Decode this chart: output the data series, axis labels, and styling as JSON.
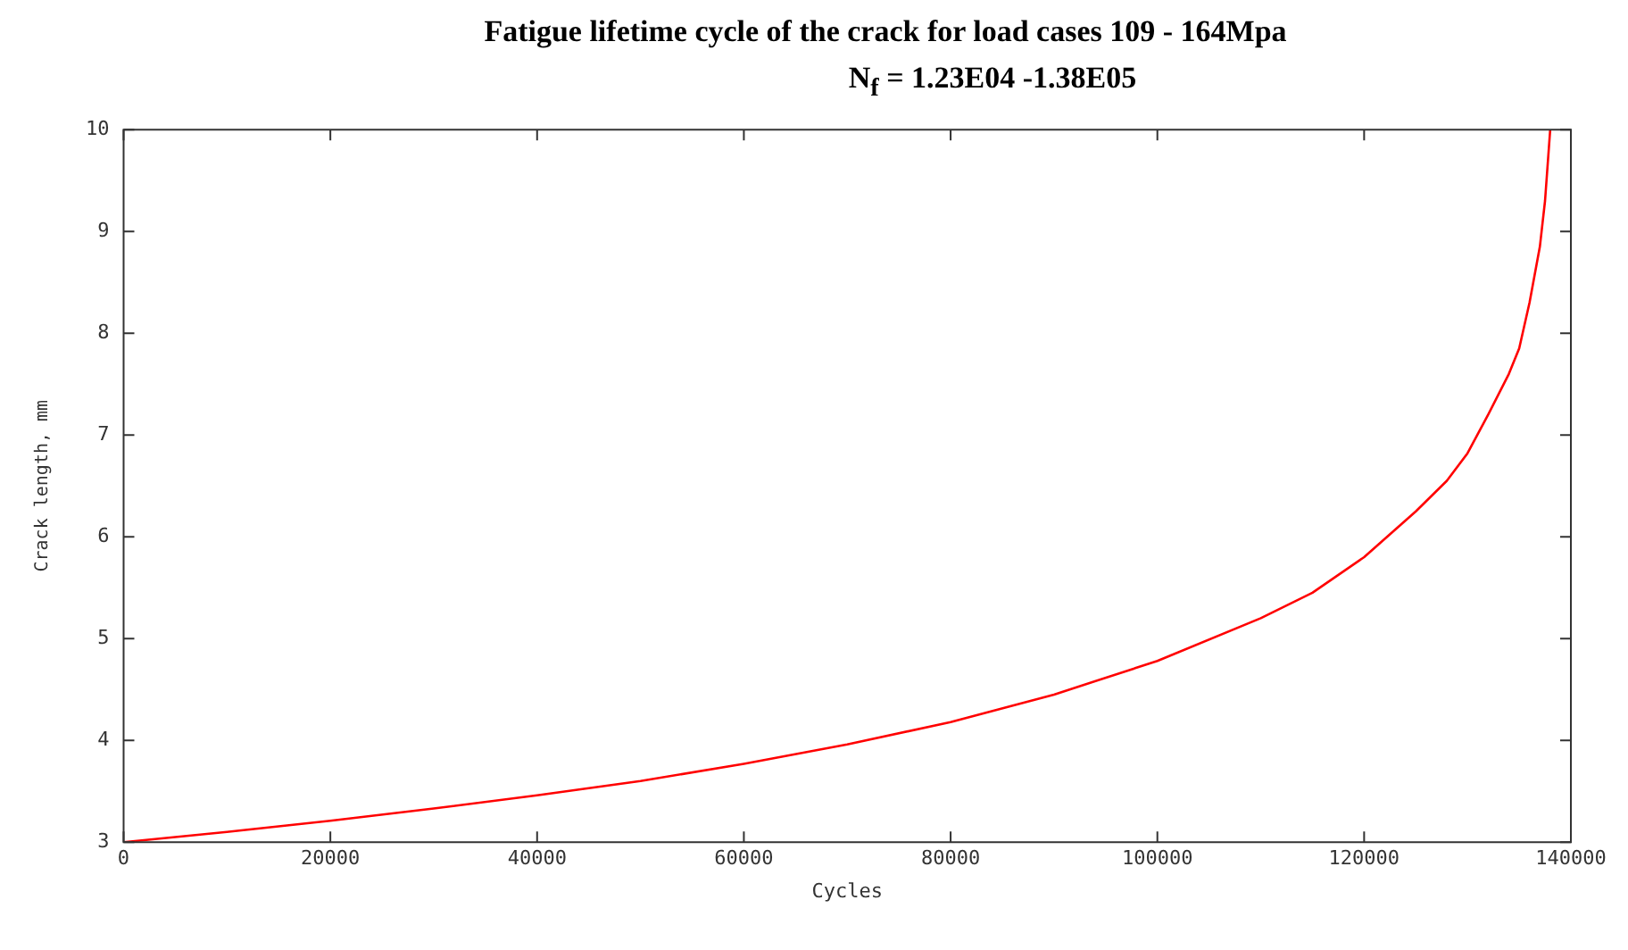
{
  "chart_data": {
    "type": "line",
    "title": "Fatigue lifetime cycle of the crack  for load cases 109 - 164Mpa",
    "subtitle": "N$_{f}$ =  1.23E04 -1.38E05",
    "xlabel": "Cycles",
    "ylabel": "Crack length, mm",
    "x": [
      0,
      10000,
      20000,
      30000,
      40000,
      50000,
      60000,
      70000,
      80000,
      90000,
      100000,
      110000,
      115000,
      120000,
      125000,
      128000,
      130000,
      132000,
      134000,
      135000,
      136000,
      137000,
      137500,
      138000
    ],
    "series": [
      {
        "color": "#ff0000",
        "values": [
          3.0,
          3.1,
          3.21,
          3.33,
          3.46,
          3.6,
          3.77,
          3.96,
          4.18,
          4.45,
          4.78,
          5.2,
          5.45,
          5.8,
          6.25,
          6.55,
          6.82,
          7.2,
          7.6,
          7.85,
          8.3,
          8.85,
          9.3,
          10.0
        ]
      }
    ],
    "xlim": [
      0,
      140000
    ],
    "xticks": [
      0,
      20000,
      40000,
      60000,
      80000,
      100000,
      120000,
      140000
    ],
    "ylim": [
      3,
      10
    ],
    "yticks": [
      3,
      4,
      5,
      6,
      7,
      8,
      9,
      10
    ],
    "grid": false,
    "legend": false,
    "marker": "none",
    "line_style": "solid"
  }
}
